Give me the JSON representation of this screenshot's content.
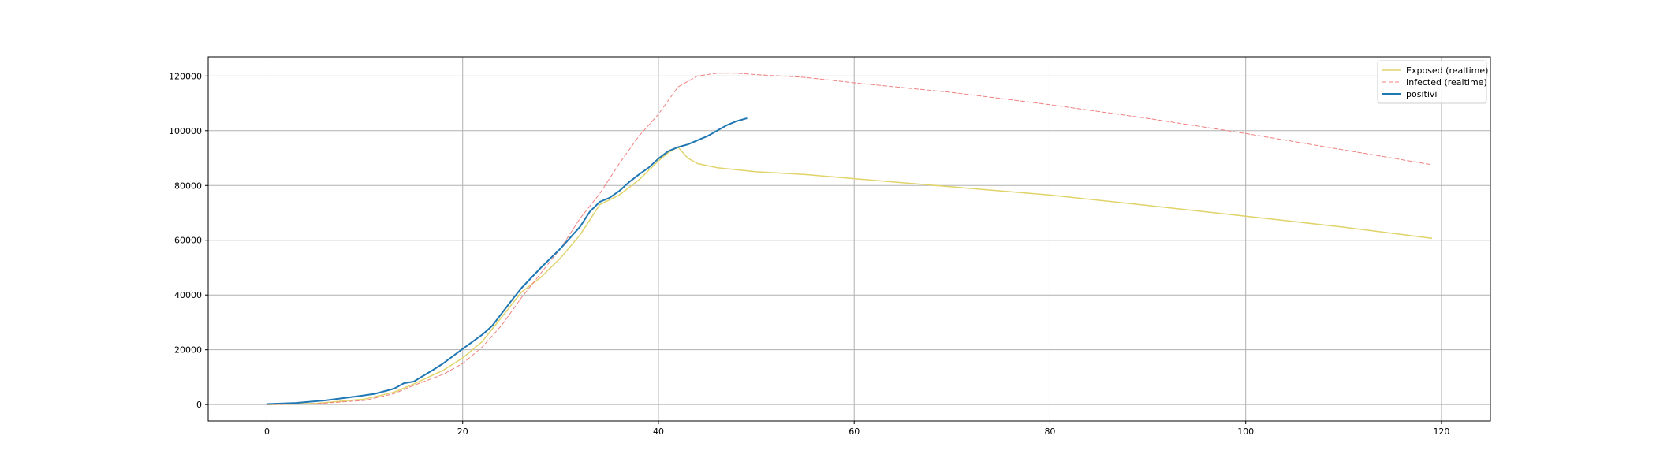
{
  "chart_data": {
    "type": "line",
    "title": "",
    "xlabel": "",
    "ylabel": "",
    "xlim": [
      -6,
      125
    ],
    "ylim": [
      -6000,
      127000
    ],
    "xticks": [
      0,
      20,
      40,
      60,
      80,
      100,
      120
    ],
    "yticks": [
      0,
      20000,
      40000,
      60000,
      80000,
      100000,
      120000
    ],
    "grid": true,
    "legend_position": "top-right",
    "series": [
      {
        "name": "Exposed (realtime)",
        "color": "#e0d36a",
        "style": "solid",
        "x": [
          0,
          5,
          10,
          13,
          15,
          18,
          20,
          22,
          24,
          26,
          28,
          30,
          32,
          34,
          36,
          38,
          40,
          41,
          42,
          43,
          44,
          46,
          50,
          55,
          60,
          70,
          80,
          90,
          100,
          110,
          119
        ],
        "y": [
          0,
          400,
          2000,
          4500,
          7500,
          12500,
          17000,
          23000,
          32000,
          41000,
          46500,
          53500,
          62000,
          73000,
          76500,
          82000,
          89000,
          92000,
          94000,
          90000,
          88000,
          86500,
          85000,
          84000,
          82500,
          79500,
          76500,
          72700,
          68800,
          64800,
          60700
        ]
      },
      {
        "name": "Infected (realtime)",
        "color": "#f08080",
        "style": "dashed",
        "x": [
          0,
          5,
          10,
          13,
          15,
          18,
          20,
          22,
          24,
          26,
          28,
          30,
          32,
          34,
          36,
          38,
          40,
          42,
          44,
          46,
          48,
          50,
          55,
          60,
          70,
          80,
          90,
          100,
          110,
          119
        ],
        "y": [
          0,
          300,
          1500,
          4000,
          7000,
          11000,
          15000,
          21000,
          29000,
          39000,
          48000,
          57000,
          68000,
          77000,
          88000,
          98000,
          106000,
          116000,
          120000,
          121000,
          121000,
          120500,
          119500,
          117500,
          114000,
          109500,
          104500,
          99000,
          93000,
          87600
        ]
      },
      {
        "name": "positivi",
        "color": "#1f77b4",
        "style": "solid",
        "x": [
          0,
          3,
          6,
          9,
          11,
          13,
          14,
          15,
          17,
          18,
          20,
          22,
          23,
          25,
          26,
          28,
          30,
          32,
          33,
          34,
          35,
          36,
          37,
          38,
          39,
          40,
          41,
          42,
          43,
          44,
          45,
          46,
          47,
          48,
          49
        ],
        "y": [
          200,
          600,
          1500,
          2900,
          3900,
          5800,
          7800,
          8400,
          12700,
          15000,
          20300,
          25500,
          28700,
          38000,
          42500,
          50000,
          57000,
          65000,
          70500,
          74000,
          75500,
          78000,
          81200,
          84000,
          86500,
          89800,
          92500,
          94000,
          95000,
          96500,
          98000,
          100000,
          102000,
          103500,
          104500
        ]
      }
    ]
  }
}
